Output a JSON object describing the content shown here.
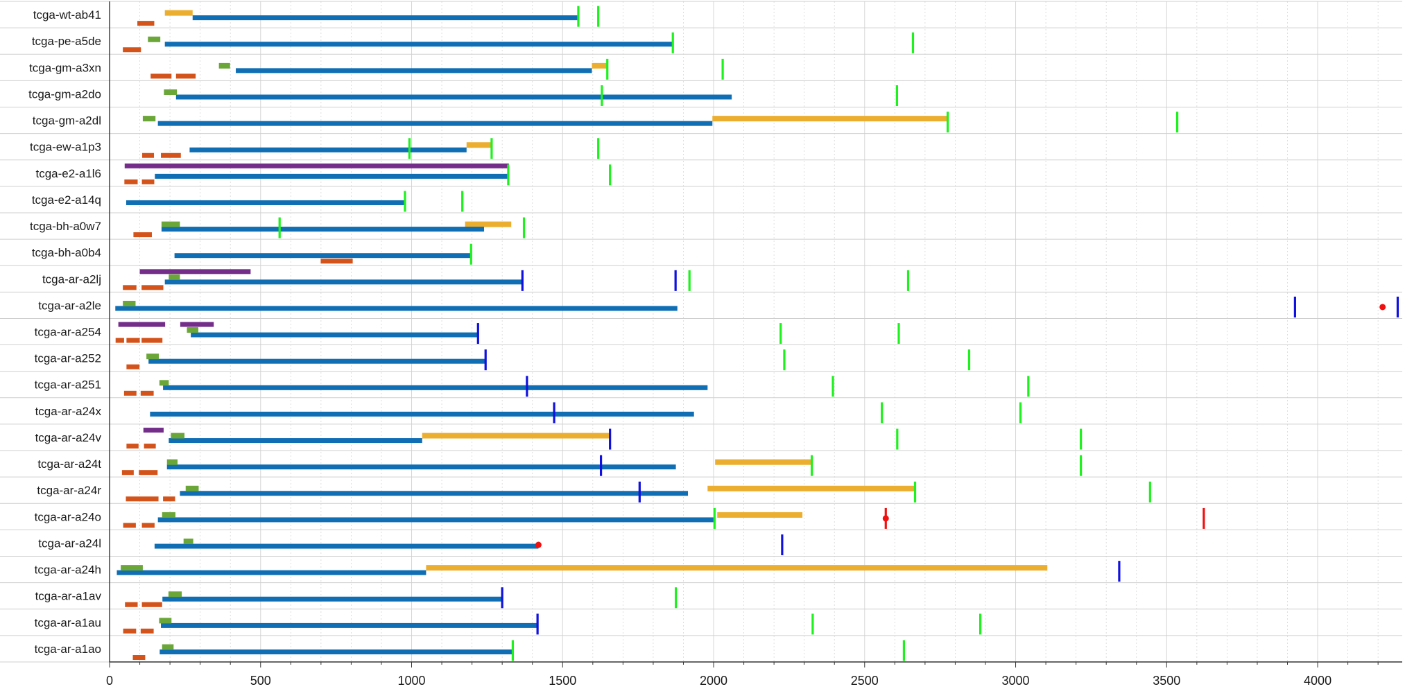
{
  "colors": {
    "background": "#ffffff",
    "row_rule": "#cfcfcf",
    "grid": "#d6d6d6",
    "axis": "#333333",
    "text": "#1a1a1a",
    "main": "#0f6eb4",
    "yellow": "#ebae2f",
    "green_bar": "#6aa638",
    "orange": "#d4531b",
    "purple": "#742e8a",
    "green_tick": "#1cf21c",
    "blue_tick": "#1010e0",
    "red": "#f01010"
  },
  "chart_data": {
    "type": "timeline",
    "title": "",
    "xlabel": "",
    "ylabel": "",
    "xlim": [
      0,
      4280
    ],
    "xticks": [
      0,
      500,
      1000,
      1500,
      2000,
      2500,
      3000,
      3500,
      4000
    ],
    "minor_grid_step": 100,
    "grid": true,
    "rows": [
      {
        "label": "tcga-wt-ab41",
        "main": [
          [
            275,
            1552
          ]
        ],
        "yellow": [
          [
            183,
            275
          ]
        ],
        "green": [],
        "orange": [
          [
            92,
            148
          ]
        ],
        "purple": [],
        "green_ticks": [
          1552,
          1618
        ],
        "blue_ticks": [],
        "red_ticks": [],
        "red_dots": []
      },
      {
        "label": "tcga-pe-a5de",
        "main": [
          [
            183,
            1865
          ]
        ],
        "yellow": [],
        "green": [
          [
            127,
            168
          ]
        ],
        "orange": [
          [
            44,
            104
          ]
        ],
        "purple": [],
        "green_ticks": [
          1865,
          2660
        ],
        "blue_ticks": [],
        "red_ticks": [],
        "red_dots": []
      },
      {
        "label": "tcga-gm-a3xn",
        "main": [
          [
            418,
            1597
          ]
        ],
        "yellow": [
          [
            1597,
            1648
          ]
        ],
        "green": [
          [
            362,
            399
          ]
        ],
        "orange": [
          [
            136,
            205
          ],
          [
            220,
            285
          ]
        ],
        "purple": [],
        "green_ticks": [
          1648,
          2030
        ],
        "blue_ticks": [],
        "red_ticks": [],
        "red_dots": []
      },
      {
        "label": "tcga-gm-a2do",
        "main": [
          [
            220,
            2060
          ]
        ],
        "yellow": [],
        "green": [
          [
            180,
            223
          ]
        ],
        "orange": [],
        "purple": [],
        "green_ticks": [
          1630,
          2607
        ],
        "blue_ticks": [],
        "red_ticks": [],
        "red_dots": []
      },
      {
        "label": "tcga-gm-a2dl",
        "main": [
          [
            160,
            1996
          ]
        ],
        "yellow": [
          [
            1996,
            2775
          ]
        ],
        "green": [
          [
            110,
            152
          ]
        ],
        "orange": [],
        "purple": [],
        "green_ticks": [
          2775,
          3535
        ],
        "blue_ticks": [],
        "red_ticks": [],
        "red_dots": []
      },
      {
        "label": "tcga-ew-a1p3",
        "main": [
          [
            265,
            1182
          ]
        ],
        "yellow": [
          [
            1182,
            1265
          ]
        ],
        "green": [],
        "orange": [
          [
            108,
            147
          ],
          [
            170,
            236
          ]
        ],
        "purple": [],
        "green_ticks": [
          993,
          1265,
          1618
        ],
        "blue_ticks": [],
        "red_ticks": [],
        "red_dots": []
      },
      {
        "label": "tcga-e2-a1l6",
        "main": [
          [
            150,
            1320
          ]
        ],
        "yellow": [],
        "green": [],
        "orange": [
          [
            49,
            93
          ],
          [
            107,
            148
          ]
        ],
        "purple": [
          [
            50,
            1322
          ]
        ],
        "green_ticks": [
          1320,
          1657
        ],
        "blue_ticks": [],
        "red_ticks": [],
        "red_dots": []
      },
      {
        "label": "tcga-e2-a14q",
        "main": [
          [
            55,
            978
          ]
        ],
        "yellow": [],
        "green": [],
        "orange": [],
        "purple": [],
        "green_ticks": [
          978,
          1168
        ],
        "blue_ticks": [],
        "red_ticks": [],
        "red_dots": []
      },
      {
        "label": "tcga-bh-a0w7",
        "main": [
          [
            172,
            1240
          ]
        ],
        "yellow": [
          [
            1177,
            1330
          ]
        ],
        "green": [
          [
            172,
            233
          ]
        ],
        "orange": [
          [
            79,
            140
          ]
        ],
        "purple": [],
        "green_ticks": [
          563,
          1372
        ],
        "blue_ticks": [],
        "red_ticks": [],
        "red_dots": []
      },
      {
        "label": "tcga-bh-a0b4",
        "main": [
          [
            215,
            1197
          ]
        ],
        "yellow": [],
        "green": [],
        "orange": [
          [
            699,
            805
          ]
        ],
        "purple": [],
        "green_ticks": [
          1197
        ],
        "blue_ticks": [],
        "red_ticks": [],
        "red_dots": []
      },
      {
        "label": "tcga-ar-a2lj",
        "main": [
          [
            183,
            1367
          ]
        ],
        "yellow": [],
        "green": [
          [
            196,
            233
          ]
        ],
        "orange": [
          [
            44,
            89
          ],
          [
            106,
            178
          ]
        ],
        "purple": [
          [
            100,
            467
          ]
        ],
        "green_ticks": [
          1920,
          2644
        ],
        "blue_ticks": [
          1367,
          1874
        ],
        "red_ticks": [],
        "red_dots": []
      },
      {
        "label": "tcga-ar-a2le",
        "main": [
          [
            19,
            1880
          ]
        ],
        "yellow": [],
        "green": [
          [
            44,
            86
          ]
        ],
        "orange": [],
        "purple": [],
        "green_ticks": [],
        "blue_ticks": [
          3925,
          4265
        ],
        "red_ticks": [],
        "red_dots": [
          4215
        ]
      },
      {
        "label": "tcga-ar-a254",
        "main": [
          [
            269,
            1220
          ]
        ],
        "yellow": [],
        "green": [
          [
            256,
            294
          ]
        ],
        "orange": [
          [
            20,
            48
          ],
          [
            56,
            100
          ],
          [
            106,
            175
          ]
        ],
        "purple": [
          [
            29,
            184
          ],
          [
            234,
            345
          ]
        ],
        "green_ticks": [
          2222,
          2613
        ],
        "blue_ticks": [
          1220
        ],
        "red_ticks": [],
        "red_dots": []
      },
      {
        "label": "tcga-ar-a252",
        "main": [
          [
            129,
            1245
          ]
        ],
        "yellow": [],
        "green": [
          [
            122,
            163
          ]
        ],
        "orange": [
          [
            56,
            99
          ]
        ],
        "purple": [],
        "green_ticks": [
          2234,
          2846
        ],
        "blue_ticks": [
          1245
        ],
        "red_ticks": [],
        "red_dots": []
      },
      {
        "label": "tcga-ar-a251",
        "main": [
          [
            177,
            1980
          ]
        ],
        "yellow": [],
        "green": [
          [
            165,
            196
          ]
        ],
        "orange": [
          [
            48,
            89
          ],
          [
            103,
            146
          ]
        ],
        "purple": [],
        "green_ticks": [
          2395,
          3042
        ],
        "blue_ticks": [
          1382
        ],
        "red_ticks": [],
        "red_dots": []
      },
      {
        "label": "tcga-ar-a24x",
        "main": [
          [
            134,
            1935
          ]
        ],
        "yellow": [],
        "green": [],
        "orange": [],
        "purple": [],
        "green_ticks": [
          2557,
          3016
        ],
        "blue_ticks": [
          1472
        ],
        "red_ticks": [],
        "red_dots": []
      },
      {
        "label": "tcga-ar-a24v",
        "main": [
          [
            196,
            1035
          ]
        ],
        "yellow": [
          [
            1035,
            1657
          ]
        ],
        "green": [
          [
            203,
            248
          ]
        ],
        "orange": [
          [
            56,
            96
          ],
          [
            114,
            153
          ]
        ],
        "purple": [
          [
            112,
            179
          ]
        ],
        "green_ticks": [
          2608,
          3216
        ],
        "blue_ticks": [
          1657
        ],
        "red_ticks": [],
        "red_dots": []
      },
      {
        "label": "tcga-ar-a24t",
        "main": [
          [
            190,
            1875
          ]
        ],
        "yellow": [
          [
            2005,
            2325
          ]
        ],
        "green": [
          [
            190,
            225
          ]
        ],
        "orange": [
          [
            41,
            80
          ],
          [
            97,
            159
          ]
        ],
        "purple": [],
        "green_ticks": [
          2325,
          3216
        ],
        "blue_ticks": [
          1627
        ],
        "red_ticks": [],
        "red_dots": []
      },
      {
        "label": "tcga-ar-a24r",
        "main": [
          [
            233,
            1915
          ]
        ],
        "yellow": [
          [
            1980,
            2667
          ]
        ],
        "green": [
          [
            252,
            295
          ]
        ],
        "orange": [
          [
            54,
            162
          ],
          [
            177,
            217
          ]
        ],
        "purple": [],
        "green_ticks": [
          2667,
          3445
        ],
        "blue_ticks": [
          1755
        ],
        "red_ticks": [],
        "red_dots": []
      },
      {
        "label": "tcga-ar-a24o",
        "main": [
          [
            160,
            2003
          ]
        ],
        "yellow": [
          [
            2012,
            2294
          ]
        ],
        "green": [
          [
            174,
            218
          ]
        ],
        "orange": [
          [
            45,
            87
          ],
          [
            107,
            149
          ]
        ],
        "purple": [],
        "green_ticks": [
          2003
        ],
        "blue_ticks": [],
        "red_ticks": [
          2570,
          3623
        ],
        "red_dots": [
          2570
        ]
      },
      {
        "label": "tcga-ar-a24l",
        "main": [
          [
            149,
            1420
          ]
        ],
        "yellow": [],
        "green": [
          [
            245,
            277
          ]
        ],
        "orange": [],
        "purple": [],
        "green_ticks": [],
        "blue_ticks": [
          2227
        ],
        "red_ticks": [],
        "red_dots": [
          1420
        ]
      },
      {
        "label": "tcga-ar-a24h",
        "main": [
          [
            24,
            1048
          ]
        ],
        "yellow": [
          [
            1048,
            3105
          ]
        ],
        "green": [
          [
            37,
            110
          ]
        ],
        "orange": [],
        "purple": [],
        "green_ticks": [],
        "blue_ticks": [
          3343
        ],
        "red_ticks": [],
        "red_dots": []
      },
      {
        "label": "tcga-ar-a1av",
        "main": [
          [
            175,
            1300
          ]
        ],
        "yellow": [],
        "green": [
          [
            195,
            239
          ]
        ],
        "orange": [
          [
            51,
            93
          ],
          [
            107,
            174
          ]
        ],
        "purple": [],
        "green_ticks": [
          1875
        ],
        "blue_ticks": [
          1300
        ],
        "red_ticks": [],
        "red_dots": []
      },
      {
        "label": "tcga-ar-a1au",
        "main": [
          [
            170,
            1417
          ]
        ],
        "yellow": [],
        "green": [
          [
            164,
            205
          ]
        ],
        "orange": [
          [
            45,
            88
          ],
          [
            103,
            146
          ]
        ],
        "purple": [],
        "green_ticks": [
          2328,
          2883
        ],
        "blue_ticks": [
          1417
        ],
        "red_ticks": [],
        "red_dots": []
      },
      {
        "label": "tcga-ar-a1ao",
        "main": [
          [
            166,
            1335
          ]
        ],
        "yellow": [],
        "green": [
          [
            174,
            212
          ]
        ],
        "orange": [
          [
            77,
            118
          ]
        ],
        "purple": [],
        "green_ticks": [
          1335,
          2630
        ],
        "blue_ticks": [],
        "red_ticks": [],
        "red_dots": []
      }
    ]
  }
}
